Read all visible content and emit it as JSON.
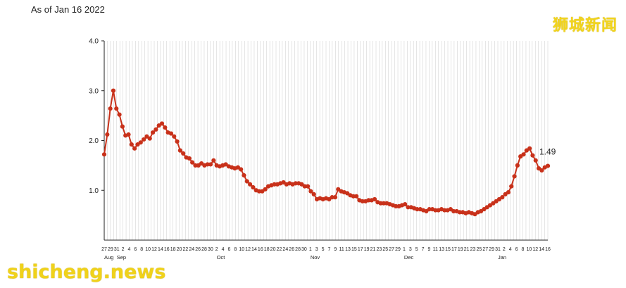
{
  "as_of": "As of Jan 16 2022",
  "watermark_top": "狮城新闻",
  "watermark_bottom": "shicheng.news",
  "colors": {
    "line": "#c8311a",
    "grid": "#d4d4d4",
    "axis": "#222222"
  },
  "chart_data": {
    "type": "line",
    "title": "",
    "xlabel": "",
    "ylabel": "",
    "ylim": [
      0,
      4.0
    ],
    "yticks": [
      "1.0",
      "2.0",
      "3.0",
      "4.0"
    ],
    "grid": true,
    "x_start": "2021-08-27",
    "x_end": "2022-01-16",
    "x_tick_labels": [
      "27",
      "29",
      "31",
      "2",
      "4",
      "6",
      "8",
      "10",
      "12",
      "14",
      "16",
      "18",
      "20",
      "22",
      "24",
      "26",
      "28",
      "30",
      "2",
      "4",
      "6",
      "8",
      "10",
      "12",
      "14",
      "16",
      "18",
      "20",
      "22",
      "24",
      "26",
      "28",
      "30",
      "1",
      "3",
      "5",
      "7",
      "9",
      "11",
      "13",
      "15",
      "17",
      "19",
      "21",
      "23",
      "25",
      "27",
      "29",
      "1",
      "3",
      "5",
      "7",
      "9",
      "11",
      "13",
      "15",
      "17",
      "19",
      "21",
      "23",
      "25",
      "27",
      "29",
      "31",
      "2",
      "4",
      "6",
      "8",
      "10",
      "12",
      "14",
      "16"
    ],
    "month_labels": [
      {
        "label": "Aug",
        "date": "2021-08-27"
      },
      {
        "label": "Sep",
        "date": "2021-08-31"
      },
      {
        "label": "Oct",
        "date": "2021-10-02"
      },
      {
        "label": "Nov",
        "date": "2021-11-01"
      },
      {
        "label": "Dec",
        "date": "2021-12-01"
      },
      {
        "label": "Jan",
        "date": "2021-12-31"
      }
    ],
    "end_label": "1.49",
    "series": [
      {
        "values": [
          1.72,
          2.12,
          2.64,
          3.0,
          2.64,
          2.52,
          2.28,
          2.1,
          2.12,
          1.92,
          1.84,
          1.92,
          1.96,
          2.02,
          2.08,
          2.04,
          2.16,
          2.22,
          2.3,
          2.34,
          2.26,
          2.16,
          2.14,
          2.08,
          1.98,
          1.8,
          1.74,
          1.66,
          1.64,
          1.56,
          1.5,
          1.5,
          1.54,
          1.5,
          1.52,
          1.52,
          1.6,
          1.5,
          1.48,
          1.5,
          1.52,
          1.48,
          1.46,
          1.44,
          1.46,
          1.42,
          1.3,
          1.18,
          1.12,
          1.06,
          1.0,
          0.98,
          0.98,
          1.02,
          1.08,
          1.1,
          1.12,
          1.12,
          1.14,
          1.16,
          1.12,
          1.14,
          1.12,
          1.14,
          1.14,
          1.12,
          1.08,
          1.08,
          0.98,
          0.92,
          0.82,
          0.84,
          0.82,
          0.84,
          0.82,
          0.86,
          0.86,
          1.02,
          0.98,
          0.96,
          0.94,
          0.9,
          0.88,
          0.88,
          0.8,
          0.78,
          0.78,
          0.8,
          0.8,
          0.82,
          0.76,
          0.74,
          0.74,
          0.74,
          0.72,
          0.7,
          0.68,
          0.68,
          0.7,
          0.72,
          0.66,
          0.66,
          0.64,
          0.62,
          0.62,
          0.6,
          0.58,
          0.62,
          0.62,
          0.6,
          0.6,
          0.62,
          0.6,
          0.6,
          0.62,
          0.58,
          0.58,
          0.56,
          0.56,
          0.54,
          0.56,
          0.54,
          0.52,
          0.56,
          0.58,
          0.62,
          0.66,
          0.7,
          0.74,
          0.78,
          0.82,
          0.86,
          0.92,
          0.96,
          1.08,
          1.28,
          1.5,
          1.68,
          1.72,
          1.8,
          1.84,
          1.7,
          1.6,
          1.44,
          1.4,
          1.46,
          1.49
        ]
      }
    ]
  }
}
